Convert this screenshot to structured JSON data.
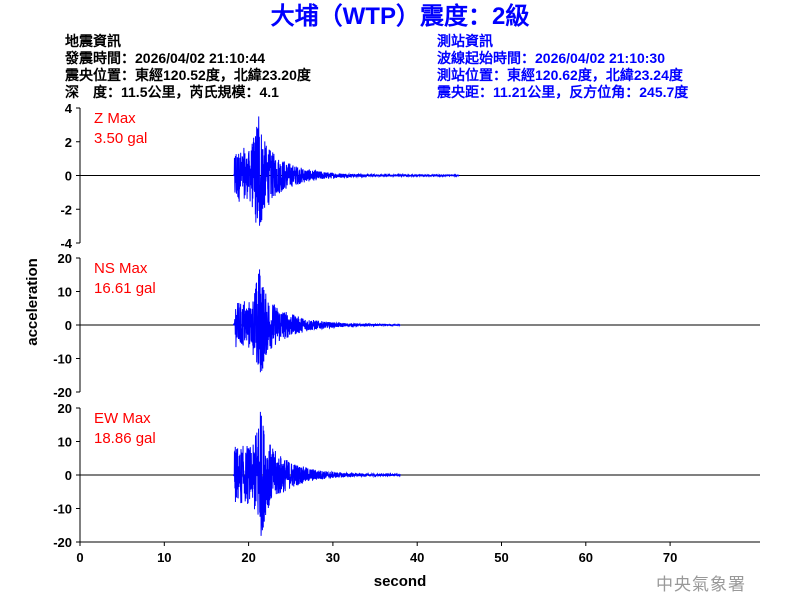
{
  "title": "大埔（WTP）震度：2級",
  "quake_info": {
    "heading": "地震資訊",
    "origin_time": "發震時間：2026/04/02 21:10:44",
    "epicenter": "震央位置：東經120.52度，北緯23.20度",
    "depth_magnitude": "深　度：11.5公里，芮氏規模：4.1"
  },
  "station_info": {
    "heading": "測站資訊",
    "waveform_start": "波線起始時間：2026/04/02 21:10:30",
    "station_location": "測站位置：東經120.62度，北緯23.24度",
    "distance_azimuth": "震央距：11.21公里，反方位角：245.7度"
  },
  "logo_text": "中央氣象署",
  "chart_data": {
    "type": "line",
    "xlabel": "second",
    "ylabel": "acceleration",
    "xlim": [
      0,
      80
    ],
    "xticks": [
      "0",
      "10",
      "20",
      "30",
      "40",
      "50",
      "60",
      "70"
    ],
    "line_color": "#0000ff",
    "label_color": "#ff0000",
    "panels": [
      {
        "component": "Z",
        "max_label": "Z Max",
        "max_value": "3.50 gal",
        "ylim": [
          -4,
          4
        ],
        "yticks": [
          "4",
          "2",
          "0",
          "-2",
          "-4"
        ],
        "peak": 3.5,
        "onset_s": 18.3,
        "peak_time_s": 21.2,
        "coda_end_s": 45
      },
      {
        "component": "NS",
        "max_label": "NS Max",
        "max_value": "16.61 gal",
        "ylim": [
          -20,
          20
        ],
        "yticks": [
          "20",
          "10",
          "0",
          "-10",
          "-20"
        ],
        "peak": 16.61,
        "onset_s": 18.3,
        "peak_time_s": 21.3,
        "coda_end_s": 38
      },
      {
        "component": "EW",
        "max_label": "EW Max",
        "max_value": "18.86 gal",
        "ylim": [
          -20,
          20
        ],
        "yticks": [
          "20",
          "10",
          "0",
          "-10",
          "-20"
        ],
        "peak": 18.86,
        "onset_s": 18.3,
        "peak_time_s": 21.4,
        "coda_end_s": 38
      }
    ]
  }
}
